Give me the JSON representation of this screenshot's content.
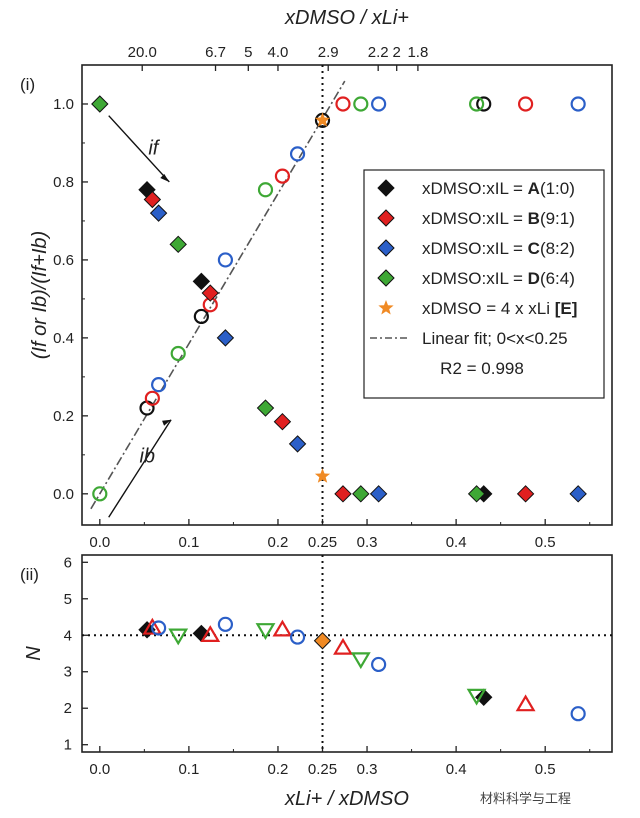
{
  "chart_data": [
    {
      "panel_label": "(i)",
      "type": "scatter",
      "xlabel_top": "xDMSO / xLi+",
      "ylabel": "(If or Ib)/(If+Ib)",
      "xlim": [
        -0.02,
        0.575
      ],
      "ylim": [
        -0.08,
        1.1
      ],
      "x_ticks": [
        "0.0",
        "0.1",
        "0.2",
        "0.25",
        "0.3",
        "0.4",
        "0.5"
      ],
      "x_tick_values": [
        0.0,
        0.1,
        0.2,
        0.25,
        0.3,
        0.4,
        0.5
      ],
      "y_ticks": [
        "0.0",
        "0.2",
        "0.4",
        "0.6",
        "0.8",
        "1.0"
      ],
      "y_tick_values": [
        0.0,
        0.2,
        0.4,
        0.6,
        0.8,
        1.0
      ],
      "top_ticks": [
        "20.0",
        "6.7",
        "5",
        "4.0",
        "2.9",
        "2.2",
        "2",
        "1.8"
      ],
      "top_tick_positions": [
        0.0476,
        0.1299,
        0.1667,
        0.2,
        0.2564,
        0.3125,
        0.3333,
        0.3571
      ],
      "annotations": [
        {
          "text": "if",
          "x": 0.05,
          "y": 0.87
        },
        {
          "text": "ib",
          "x": 0.04,
          "y": 0.08
        }
      ],
      "vertical_line_x": 0.25,
      "linear_fit": {
        "slope": 3.85,
        "intercept": 0.0,
        "x_range": [
          -0.01,
          0.275
        ]
      },
      "series": [
        {
          "name": "A(1:0)",
          "color": "#111111",
          "If": [
            [
              0.053,
              0.78
            ],
            [
              0.114,
              0.545
            ],
            [
              0.431,
              0.0
            ]
          ],
          "Ib": [
            [
              0.053,
              0.22
            ],
            [
              0.114,
              0.455
            ],
            [
              0.431,
              1.0
            ]
          ]
        },
        {
          "name": "B(9:1)",
          "color": "#e02020",
          "If": [
            [
              0.059,
              0.755
            ],
            [
              0.124,
              0.515
            ],
            [
              0.205,
              0.185
            ],
            [
              0.273,
              0.0
            ],
            [
              0.478,
              0.0
            ]
          ],
          "Ib": [
            [
              0.059,
              0.245
            ],
            [
              0.124,
              0.485
            ],
            [
              0.205,
              0.815
            ],
            [
              0.273,
              1.0
            ],
            [
              0.478,
              1.0
            ]
          ]
        },
        {
          "name": "C(8:2)",
          "color": "#2b5fc8",
          "If": [
            [
              0.066,
              0.72
            ],
            [
              0.141,
              0.4
            ],
            [
              0.222,
              0.128
            ],
            [
              0.313,
              0.0
            ],
            [
              0.537,
              0.0
            ]
          ],
          "Ib": [
            [
              0.066,
              0.28
            ],
            [
              0.141,
              0.6
            ],
            [
              0.222,
              0.872
            ],
            [
              0.313,
              1.0
            ],
            [
              0.537,
              1.0
            ]
          ]
        },
        {
          "name": "D(6:4)",
          "color": "#3ea835",
          "If": [
            [
              0.0,
              1.0
            ],
            [
              0.088,
              0.64
            ],
            [
              0.186,
              0.22
            ],
            [
              0.293,
              0.0
            ],
            [
              0.423,
              0.0
            ]
          ],
          "Ib": [
            [
              0.0,
              0.0
            ],
            [
              0.088,
              0.36
            ],
            [
              0.186,
              0.78
            ],
            [
              0.293,
              1.0
            ],
            [
              0.423,
              1.0
            ]
          ]
        },
        {
          "name": "[E]",
          "color": "#f08a24",
          "points": [
            [
              0.25,
              0.045
            ],
            [
              0.25,
              0.958
            ]
          ]
        }
      ],
      "legend": {
        "placement": "right",
        "entries": [
          {
            "prefix": "xDMSO:xIL = ",
            "bold": "A",
            "suffix": "(1:0)",
            "marker": "diamond",
            "color": "#111111"
          },
          {
            "prefix": "xDMSO:xIL = ",
            "bold": "B",
            "suffix": "(9:1)",
            "marker": "diamond",
            "color": "#e02020"
          },
          {
            "prefix": "xDMSO:xIL = ",
            "bold": "C",
            "suffix": "(8:2)",
            "marker": "diamond",
            "color": "#2b5fc8"
          },
          {
            "prefix": "xDMSO:xIL = ",
            "bold": "D",
            "suffix": "(6:4)",
            "marker": "diamond",
            "color": "#3ea835"
          },
          {
            "prefix": "xDMSO = 4 x xLi ",
            "bold": "[E]",
            "suffix": "",
            "marker": "star",
            "color": "#f08a24"
          },
          {
            "prefix": "Linear fit; 0<x<0.25",
            "bold": "",
            "suffix": "",
            "marker": "dashdot",
            "color": "#555555"
          },
          {
            "prefix": "R2 = 0.998",
            "bold": "",
            "suffix": "",
            "marker": "none",
            "color": "#222222"
          }
        ]
      }
    },
    {
      "panel_label": "(ii)",
      "type": "scatter",
      "xlabel": "xLi+ / xDMSO",
      "ylabel": "N",
      "xlim": [
        -0.02,
        0.575
      ],
      "ylim": [
        0.8,
        6.2
      ],
      "x_ticks": [
        "0.0",
        "0.1",
        "0.2",
        "0.25",
        "0.3",
        "0.4",
        "0.5"
      ],
      "x_tick_values": [
        0.0,
        0.1,
        0.2,
        0.25,
        0.3,
        0.4,
        0.5
      ],
      "y_ticks": [
        "1",
        "2",
        "3",
        "4",
        "5",
        "6"
      ],
      "y_tick_values": [
        1,
        2,
        3,
        4,
        5,
        6
      ],
      "vertical_line_x": 0.25,
      "horizontal_line_y": 4,
      "series": [
        {
          "name": "A(1:0)",
          "color": "#111111",
          "marker": "diamond-filled",
          "points": [
            [
              0.053,
              4.15
            ],
            [
              0.114,
              4.05
            ],
            [
              0.431,
              2.3
            ]
          ]
        },
        {
          "name": "B(9:1)",
          "color": "#e02020",
          "marker": "triangle-up-open",
          "points": [
            [
              0.059,
              4.2
            ],
            [
              0.124,
              4.0
            ],
            [
              0.205,
              4.15
            ],
            [
              0.273,
              3.65
            ],
            [
              0.478,
              2.1
            ]
          ]
        },
        {
          "name": "C(8:2)",
          "color": "#2b5fc8",
          "marker": "circle-open",
          "points": [
            [
              0.066,
              4.2
            ],
            [
              0.141,
              4.3
            ],
            [
              0.222,
              3.95
            ],
            [
              0.313,
              3.2
            ],
            [
              0.537,
              1.85
            ]
          ]
        },
        {
          "name": "D(6:4)",
          "color": "#3ea835",
          "marker": "triangle-down-open",
          "points": [
            [
              0.088,
              4.0
            ],
            [
              0.186,
              4.15
            ],
            [
              0.293,
              3.35
            ],
            [
              0.423,
              2.35
            ]
          ]
        },
        {
          "name": "[E]",
          "color": "#f08a24",
          "marker": "diamond-filled",
          "points": [
            [
              0.25,
              3.85
            ]
          ]
        }
      ]
    }
  ],
  "watermark": "材料科学与工程"
}
